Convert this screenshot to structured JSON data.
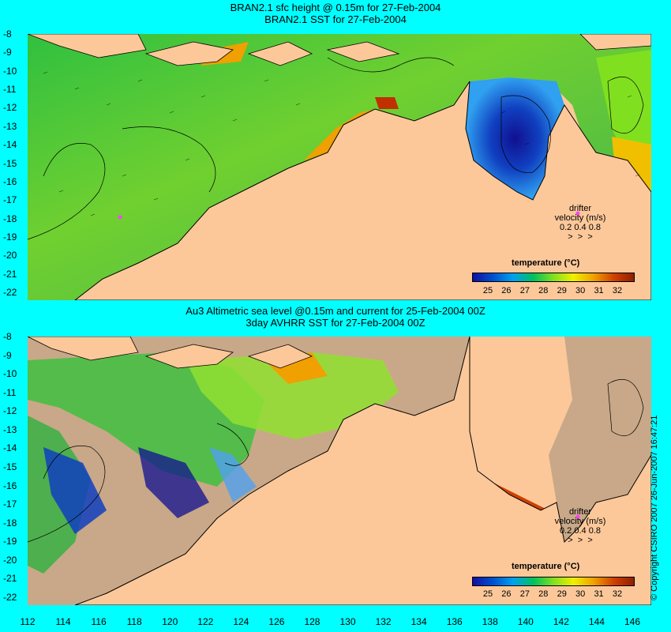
{
  "panel1": {
    "title_line1": "BRAN2.1 sfc height @ 0.15m for 27-Feb-2004",
    "title_line2": "BRAN2.1 SST for 27-Feb-2004"
  },
  "panel2": {
    "title_line1": "Au3 Altimetric sea level  @0.15m and current for 25-Feb-2004 00Z",
    "title_line2": "3day AVHRR SST for 27-Feb-2004 00Z"
  },
  "y_axis_labels": [
    "-8",
    "-9",
    "-10",
    "-11",
    "-12",
    "-13",
    "-14",
    "-15",
    "-16",
    "-17",
    "-18",
    "-19",
    "-20",
    "-21",
    "-22"
  ],
  "x_axis_labels": [
    "112",
    "114",
    "116",
    "118",
    "120",
    "122",
    "124",
    "126",
    "128",
    "130",
    "132",
    "134",
    "136",
    "138",
    "140",
    "142",
    "144",
    "146"
  ],
  "legend": {
    "title": "temperature (°C)",
    "labels": [
      "25",
      "26",
      "27",
      "28",
      "29",
      "30",
      "31",
      "32"
    ],
    "colors": [
      "#1010a0",
      "#0050d0",
      "#00a0f0",
      "#00c060",
      "#80e020",
      "#f0f000",
      "#f0a000",
      "#d04000",
      "#902000"
    ]
  },
  "drifter": {
    "label": "drifter",
    "velocity_label": "velocity (m/s)",
    "scale_values": "0.2  0.4  0.8",
    "marker_color": "#ff40ff"
  },
  "copyright": "Copyright CSIRO 2007  26-Jun-2007 16:47:21",
  "colors": {
    "background": "#00ffff",
    "land": "#fcc89a",
    "cloud_mask": "#c8a888"
  }
}
